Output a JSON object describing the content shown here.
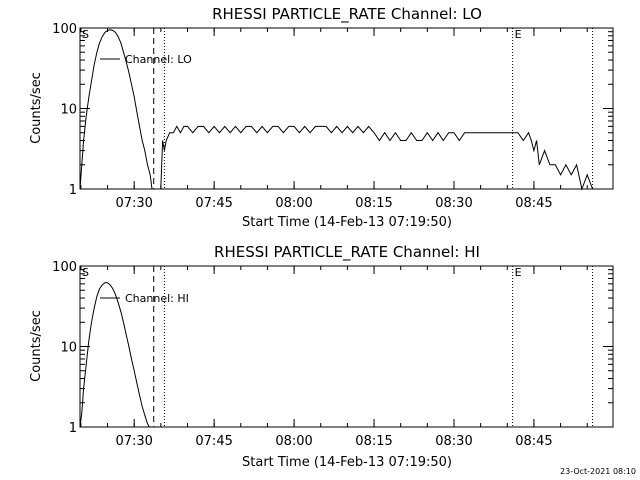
{
  "footer_timestamp": "23-Oct-2021 08:10",
  "chart_data": [
    {
      "type": "line",
      "title": "RHESSI PARTICLE_RATE Channel: LO",
      "xlabel": "Start Time (14-Feb-13 07:19:50)",
      "ylabel": "Counts/sec",
      "yscale": "log",
      "ylim": [
        1,
        100
      ],
      "xlim": [
        "07:19:50",
        "08:59:50"
      ],
      "xticks": [
        "07:30",
        "07:45",
        "08:00",
        "08:15",
        "08:30",
        "08:45"
      ],
      "yticks": [
        "1",
        "10",
        "100"
      ],
      "legend": {
        "label": "Channel: LO",
        "position": "top-left"
      },
      "markers": [
        {
          "label": "S",
          "time": "07:19:50",
          "style": "dotted"
        },
        {
          "label": "",
          "time": "07:33:40",
          "style": "dashed"
        },
        {
          "label": "",
          "time": "07:35:40",
          "style": "dotted"
        },
        {
          "label": "E",
          "time": "08:41:00",
          "style": "dotted"
        },
        {
          "label": "",
          "time": "08:56:00",
          "style": "dotted"
        }
      ],
      "series": [
        {
          "name": "Channel: LO",
          "segments": [
            {
              "x": [
                "07:19:50",
                "07:20:10",
                "07:20:30",
                "07:21:00",
                "07:21:30",
                "07:22:00",
                "07:22:30",
                "07:23:00",
                "07:23:30",
                "07:24:00",
                "07:24:30",
                "07:25:00",
                "07:25:30",
                "07:26:00",
                "07:26:30",
                "07:27:00",
                "07:27:30",
                "07:28:00",
                "07:28:30",
                "07:29:00",
                "07:29:30",
                "07:30:00",
                "07:30:30",
                "07:31:00",
                "07:31:30",
                "07:32:00",
                "07:32:30",
                "07:33:00",
                "07:33:20"
              ],
              "y": [
                1.0,
                2.0,
                4.0,
                8.0,
                14.0,
                22.0,
                35.0,
                50.0,
                65.0,
                78.0,
                88.0,
                93.0,
                95.0,
                93.0,
                88.0,
                78.0,
                65.0,
                50.0,
                38.0,
                28.0,
                20.0,
                14.0,
                9.0,
                6.0,
                4.0,
                3.0,
                2.0,
                1.5,
                1.0
              ]
            },
            {
              "x": [
                "07:35:00",
                "07:35:20",
                "07:35:40",
                "07:36:00",
                "07:36:40",
                "07:37:20",
                "07:38:00",
                "07:38:40",
                "07:39:20",
                "07:40:00",
                "07:41:00",
                "07:42:00",
                "07:43:00",
                "07:44:00",
                "07:45:00",
                "07:46:00",
                "07:47:00",
                "07:48:00",
                "07:49:00",
                "07:50:00",
                "07:51:00",
                "07:52:00",
                "07:53:00",
                "07:54:00",
                "07:55:00",
                "07:56:00",
                "07:57:00",
                "07:58:00",
                "07:59:00",
                "08:00:00",
                "08:01:00",
                "08:02:00",
                "08:03:00",
                "08:04:00",
                "08:05:00",
                "08:06:00",
                "08:07:00",
                "08:08:00",
                "08:09:00",
                "08:10:00",
                "08:11:00",
                "08:12:00",
                "08:13:00",
                "08:14:00",
                "08:15:00",
                "08:16:00",
                "08:17:00",
                "08:18:00",
                "08:19:00",
                "08:20:00",
                "08:21:00",
                "08:22:00",
                "08:23:00",
                "08:24:00",
                "08:25:00",
                "08:26:00",
                "08:27:00",
                "08:28:00",
                "08:29:00",
                "08:30:00",
                "08:31:00",
                "08:32:00",
                "08:33:00",
                "08:34:00",
                "08:35:00",
                "08:36:00",
                "08:37:00",
                "08:38:00",
                "08:39:00",
                "08:40:00",
                "08:41:00",
                "08:42:00",
                "08:43:00",
                "08:44:00",
                "08:44:30",
                "08:45:00",
                "08:45:30",
                "08:46:00",
                "08:47:00",
                "08:48:00",
                "08:49:00",
                "08:50:00",
                "08:51:00",
                "08:52:00",
                "08:53:00",
                "08:54:00",
                "08:55:00",
                "08:56:00"
              ],
              "y": [
                1.0,
                4.0,
                3.0,
                4.0,
                5.0,
                5.0,
                6.0,
                5.0,
                6.0,
                6.0,
                5.0,
                6.0,
                6.0,
                5.0,
                6.0,
                5.0,
                6.0,
                5.0,
                6.0,
                5.0,
                6.0,
                6.0,
                5.0,
                6.0,
                5.0,
                6.0,
                6.0,
                5.0,
                6.0,
                6.0,
                5.0,
                6.0,
                5.0,
                6.0,
                6.0,
                6.0,
                5.0,
                6.0,
                5.0,
                6.0,
                5.0,
                6.0,
                5.0,
                6.0,
                5.0,
                4.0,
                5.0,
                4.0,
                5.0,
                4.0,
                4.0,
                5.0,
                4.0,
                4.0,
                5.0,
                4.0,
                5.0,
                4.0,
                5.0,
                5.0,
                4.0,
                5.0,
                5.0,
                5.0,
                5.0,
                5.0,
                5.0,
                5.0,
                5.0,
                5.0,
                5.0,
                5.0,
                4.0,
                5.0,
                4.0,
                3.0,
                4.0,
                2.0,
                3.0,
                2.0,
                2.0,
                1.5,
                2.0,
                1.5,
                2.0,
                1.0,
                1.5,
                1.0
              ]
            }
          ]
        }
      ]
    },
    {
      "type": "line",
      "title": "RHESSI PARTICLE_RATE Channel: HI",
      "xlabel": "Start Time (14-Feb-13 07:19:50)",
      "ylabel": "Counts/sec",
      "yscale": "log",
      "ylim": [
        1,
        100
      ],
      "xlim": [
        "07:19:50",
        "08:59:50"
      ],
      "xticks": [
        "07:30",
        "07:45",
        "08:00",
        "08:15",
        "08:30",
        "08:45"
      ],
      "yticks": [
        "1",
        "10",
        "100"
      ],
      "legend": {
        "label": "Channel: HI",
        "position": "top-left"
      },
      "markers": [
        {
          "label": "S",
          "time": "07:19:50",
          "style": "dotted"
        },
        {
          "label": "",
          "time": "07:33:40",
          "style": "dashed"
        },
        {
          "label": "",
          "time": "07:35:40",
          "style": "dotted"
        },
        {
          "label": "E",
          "time": "08:41:00",
          "style": "dotted"
        },
        {
          "label": "",
          "time": "08:56:00",
          "style": "dotted"
        }
      ],
      "series": [
        {
          "name": "Channel: HI",
          "segments": [
            {
              "x": [
                "07:19:50",
                "07:20:10",
                "07:20:30",
                "07:21:00",
                "07:21:30",
                "07:22:00",
                "07:22:30",
                "07:23:00",
                "07:23:30",
                "07:24:00",
                "07:24:30",
                "07:25:00",
                "07:25:30",
                "07:26:00",
                "07:26:30",
                "07:27:00",
                "07:27:30",
                "07:28:00",
                "07:28:30",
                "07:29:00",
                "07:29:30",
                "07:30:00",
                "07:30:30",
                "07:31:00",
                "07:31:30",
                "07:32:00",
                "07:32:30",
                "07:32:50"
              ],
              "y": [
                1.0,
                1.5,
                3.0,
                6.0,
                12.0,
                20.0,
                30.0,
                42.0,
                52.0,
                58.0,
                62.0,
                62.0,
                58.0,
                52.0,
                44.0,
                35.0,
                27.0,
                20.0,
                14.0,
                10.0,
                7.0,
                5.0,
                3.5,
                2.5,
                1.8,
                1.4,
                1.1,
                1.0
              ]
            }
          ]
        }
      ]
    }
  ]
}
